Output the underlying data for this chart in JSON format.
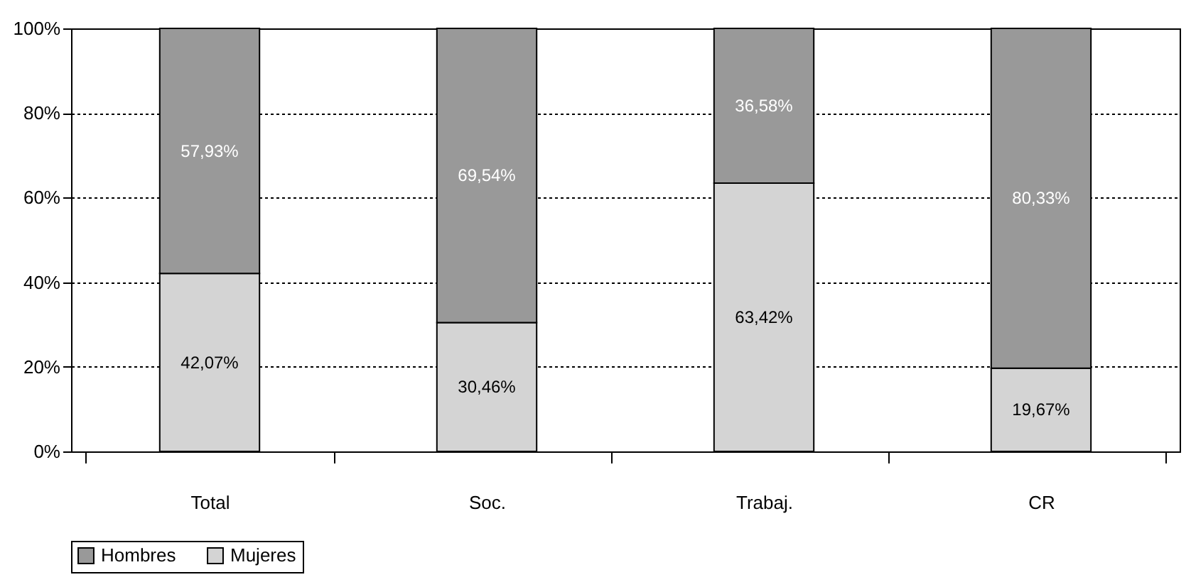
{
  "chart_data": {
    "type": "bar",
    "stacked": true,
    "categories": [
      "Total",
      "Soc.",
      "Trabaj.",
      "CR"
    ],
    "series": [
      {
        "name": "Mujeres",
        "color": "#d4d4d4",
        "values": [
          42.07,
          30.46,
          63.42,
          19.67
        ],
        "value_labels": [
          "42,07%",
          "30,46%",
          "63,42%",
          "19,67%"
        ]
      },
      {
        "name": "Hombres",
        "color": "#999999",
        "values": [
          57.93,
          69.54,
          36.58,
          80.33
        ],
        "value_labels": [
          "57,93%",
          "69,54%",
          "36,58%",
          "80,33%"
        ]
      }
    ],
    "ylim": [
      0,
      100
    ],
    "yticks": [
      {
        "value": 0,
        "label": "0%"
      },
      {
        "value": 20,
        "label": "20%"
      },
      {
        "value": 40,
        "label": "40%"
      },
      {
        "value": 60,
        "label": "60%"
      },
      {
        "value": 80,
        "label": "80%"
      },
      {
        "value": 100,
        "label": "100%"
      }
    ],
    "grid": "y",
    "legend": "bottom"
  }
}
